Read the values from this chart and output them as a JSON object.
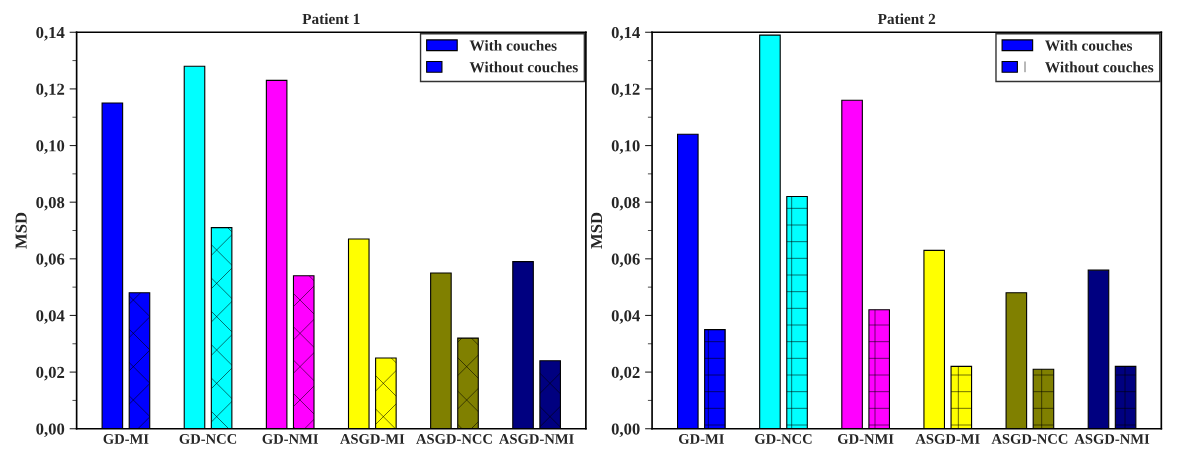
{
  "chart_data": [
    {
      "type": "bar",
      "title": "Patient 1",
      "ylabel": "MSD",
      "categories": [
        "GD-MI",
        "GD-NCC",
        "GD-NMI",
        "ASGD-MI",
        "ASGD-NCC",
        "ASGD-NMI"
      ],
      "series": [
        {
          "name": "With couches",
          "colors": [
            "#0000ff",
            "#00ffff",
            "#ff00ff",
            "#ffff00",
            "#808000",
            "#000080"
          ],
          "values": [
            0.115,
            0.128,
            0.123,
            0.067,
            0.055,
            0.059
          ]
        },
        {
          "name": "Without couches",
          "colors": [
            "#0000ff",
            "#00ffff",
            "#ff00ff",
            "#ffff00",
            "#808000",
            "#000080"
          ],
          "values": [
            0.048,
            0.071,
            0.054,
            0.025,
            0.032,
            0.024
          ]
        }
      ],
      "ylim": [
        0,
        0.14
      ],
      "yticks": [
        {
          "value": 0,
          "label": "0,00"
        },
        {
          "value": 0.02,
          "label": "0,02"
        },
        {
          "value": 0.04,
          "label": "0,04"
        },
        {
          "value": 0.06,
          "label": "0,06"
        },
        {
          "value": 0.08,
          "label": "0,08"
        },
        {
          "value": 0.1,
          "label": "0,10"
        },
        {
          "value": 0.12,
          "label": "0,12"
        },
        {
          "value": 0.14,
          "label": "0,14"
        }
      ],
      "legend": "top right",
      "grid": false
    },
    {
      "type": "bar",
      "title": "Patient 2",
      "ylabel": "MSD",
      "categories": [
        "GD-MI",
        "GD-NCC",
        "GD-NMI",
        "ASGD-MI",
        "ASGD-NCC",
        "ASGD-NMI"
      ],
      "series": [
        {
          "name": "With couches",
          "colors": [
            "#0000ff",
            "#00ffff",
            "#ff00ff",
            "#ffff00",
            "#808000",
            "#000080"
          ],
          "values": [
            0.104,
            0.139,
            0.116,
            0.063,
            0.048,
            0.056
          ]
        },
        {
          "name": "Without couches",
          "colors": [
            "#0000ff",
            "#00ffff",
            "#ff00ff",
            "#ffff00",
            "#808000",
            "#000080"
          ],
          "values": [
            0.035,
            0.082,
            0.042,
            0.022,
            0.021,
            0.022
          ]
        }
      ],
      "ylim": [
        0,
        0.14
      ],
      "yticks": [
        {
          "value": 0,
          "label": "0,00"
        },
        {
          "value": 0.02,
          "label": "0,02"
        },
        {
          "value": 0.04,
          "label": "0,04"
        },
        {
          "value": 0.06,
          "label": "0,06"
        },
        {
          "value": 0.08,
          "label": "0,08"
        },
        {
          "value": 0.1,
          "label": "0,10"
        },
        {
          "value": 0.12,
          "label": "0,12"
        },
        {
          "value": 0.14,
          "label": "0,14"
        }
      ],
      "legend": "top right",
      "grid": false
    }
  ]
}
